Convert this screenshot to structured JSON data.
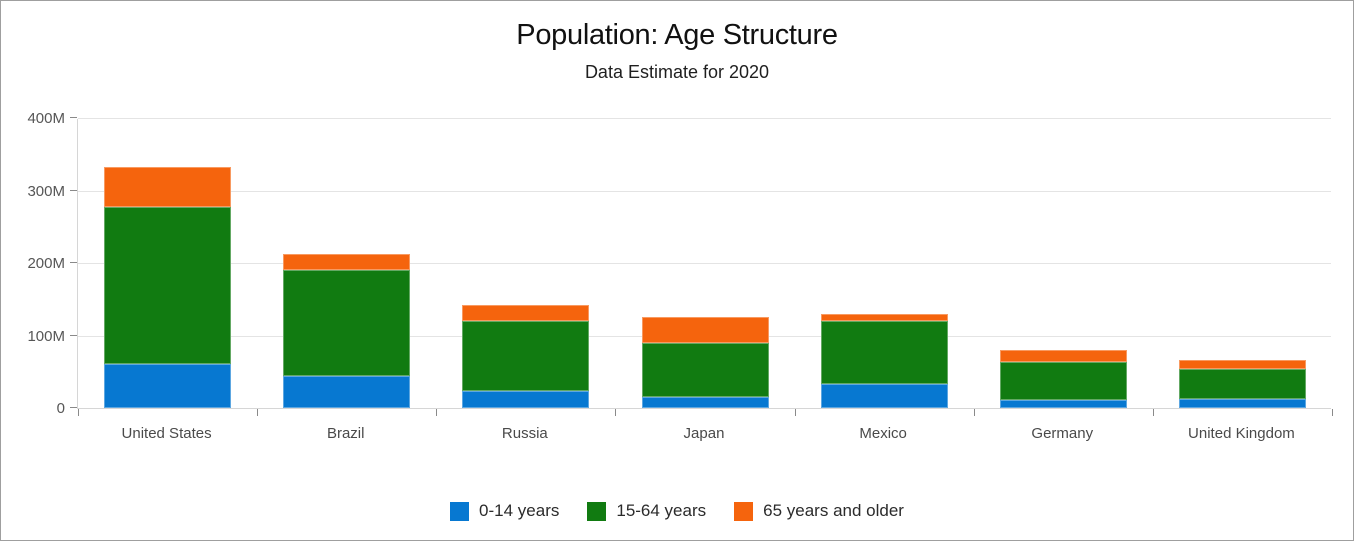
{
  "header": {
    "title": "Population: Age Structure",
    "subtitle": "Data Estimate for 2020"
  },
  "chart_data": {
    "type": "bar",
    "stacked": true,
    "title": "Population: Age Structure",
    "subtitle": "Data Estimate for 2020",
    "categories": [
      "United States",
      "Brazil",
      "Russia",
      "Japan",
      "Mexico",
      "Germany",
      "United Kingdom"
    ],
    "series": [
      {
        "name": "0-14 years",
        "color": "#0778d1",
        "values": [
          61,
          44,
          24,
          15,
          33,
          11,
          12
        ]
      },
      {
        "name": "15-64 years",
        "color": "#117b11",
        "values": [
          216,
          147,
          96,
          74,
          87,
          52,
          42
        ]
      },
      {
        "name": "65 years and older",
        "color": "#f5640d",
        "values": [
          55,
          21,
          22,
          37,
          10,
          17,
          12
        ]
      }
    ],
    "totals": [
      332,
      212,
      142,
      126,
      130,
      80,
      66
    ],
    "value_unit": "M",
    "xlabel": "",
    "ylabel": "",
    "ylim": [
      0,
      400
    ],
    "ytick_interval": 100,
    "ytick_labels": [
      "0",
      "100M",
      "200M",
      "300M",
      "400M"
    ],
    "grid": true,
    "legend_position": "bottom"
  },
  "legend": {
    "items": [
      {
        "label": "0-14 years",
        "color": "#0778d1"
      },
      {
        "label": "15-64 years",
        "color": "#117b11"
      },
      {
        "label": "65 years and older",
        "color": "#f5640d"
      }
    ]
  }
}
